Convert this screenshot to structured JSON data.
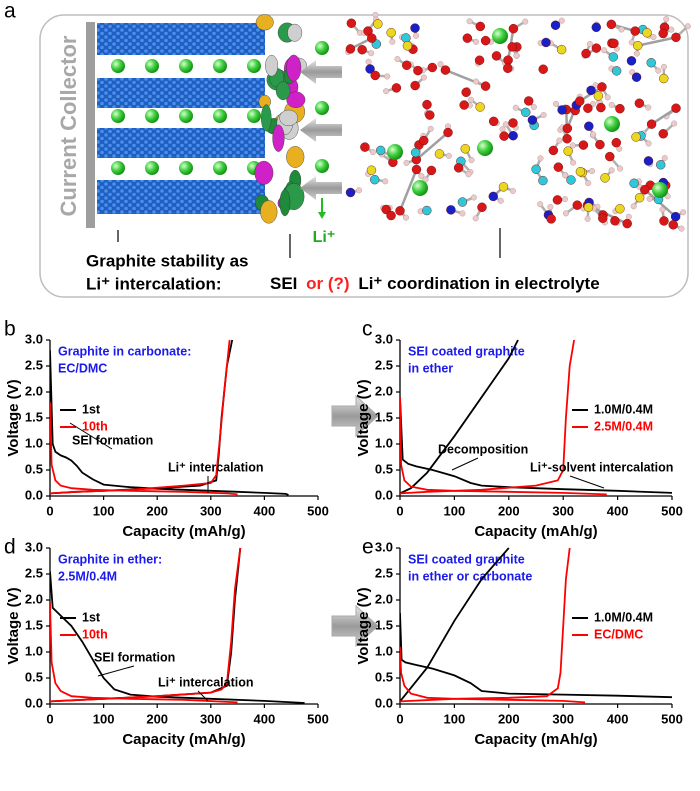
{
  "schematic": {
    "panel_label": "a",
    "collector": "Current Collector",
    "li_ion": "Li⁺",
    "caption_line1": "Graphite stability as",
    "caption_line2": "Li⁺ intercalation:",
    "sei": "SEI",
    "or_q": "or (?)",
    "coordination": "Li⁺ coordination in electrolyte"
  },
  "chart_data": [
    {
      "type": "line",
      "panel_label": "b",
      "xlabel": "Capacity (mAh/g)",
      "ylabel": "Voltage (V)",
      "note": [
        "Graphite in carbonate:",
        "EC/DMC"
      ],
      "legend": "center left",
      "annotations": [
        "SEI formation",
        "Li⁺ intercalation"
      ],
      "xlim": [
        0,
        500
      ],
      "xticks": [
        0,
        100,
        200,
        300,
        400,
        500
      ],
      "ylim": [
        0,
        3
      ],
      "yticks": [
        {
          "value": 0,
          "label": "0.0"
        },
        0.5,
        {
          "value": 1,
          "label": "1.0"
        },
        1.5,
        {
          "value": 2,
          "label": "2.0"
        },
        2.5,
        {
          "value": 3,
          "label": "3.0"
        }
      ],
      "series": [
        {
          "name": "1st",
          "color": "#000000",
          "x": [
            0,
            5,
            10,
            20,
            30,
            40,
            50,
            60,
            80,
            100,
            150,
            200,
            250,
            300,
            350,
            400,
            440,
            445,
            null,
            0,
            50,
            100,
            200,
            280,
            310,
            315,
            320,
            330,
            340
          ],
          "values": [
            2.8,
            1.0,
            0.85,
            0.78,
            0.74,
            0.68,
            0.58,
            0.45,
            0.32,
            0.22,
            0.17,
            0.14,
            0.12,
            0.1,
            0.08,
            0.06,
            0.04,
            0.02,
            null,
            0.05,
            0.08,
            0.1,
            0.15,
            0.2,
            0.3,
            0.8,
            1.5,
            2.5,
            3.0
          ]
        },
        {
          "name": "10th",
          "color": "#ff0000",
          "x": [
            0,
            3,
            10,
            20,
            40,
            80,
            150,
            250,
            330,
            350,
            null,
            0,
            50,
            150,
            250,
            300,
            310,
            318,
            325,
            335
          ],
          "values": [
            1.8,
            0.6,
            0.3,
            0.2,
            0.15,
            0.12,
            0.1,
            0.08,
            0.05,
            0.03,
            null,
            0.05,
            0.08,
            0.12,
            0.2,
            0.25,
            0.4,
            1.2,
            2.0,
            3.0
          ]
        }
      ]
    },
    {
      "type": "line",
      "panel_label": "c",
      "xlabel": "Capacity (mAh/g)",
      "ylabel": "Voltage (V)",
      "note": [
        "SEI coated graphite",
        "in ether"
      ],
      "legend": "center right",
      "annotations": [
        "Decomposition",
        "Li⁺-solvent intercalation"
      ],
      "xlim": [
        0,
        500
      ],
      "xticks": [
        0,
        100,
        200,
        300,
        400,
        500
      ],
      "ylim": [
        0,
        3
      ],
      "yticks": [
        {
          "value": 0,
          "label": "0.0"
        },
        0.5,
        {
          "value": 1,
          "label": "1.0"
        },
        1.5,
        {
          "value": 2,
          "label": "2.0"
        },
        2.5,
        {
          "value": 3,
          "label": "3.0"
        }
      ],
      "series": [
        {
          "name": "1.0M/0.4M",
          "color": "#000000",
          "x": [
            0,
            5,
            15,
            30,
            60,
            100,
            130,
            150,
            200,
            300,
            400,
            500,
            null,
            0,
            20,
            50,
            100,
            150,
            200,
            217
          ],
          "values": [
            1.9,
            0.7,
            0.62,
            0.57,
            0.5,
            0.38,
            0.25,
            0.2,
            0.17,
            0.13,
            0.1,
            0.06,
            null,
            0.05,
            0.15,
            0.45,
            1.15,
            1.9,
            2.65,
            3.0
          ]
        },
        {
          "name": "2.5M/0.4M",
          "color": "#ff0000",
          "x": [
            0,
            2,
            8,
            20,
            50,
            100,
            200,
            300,
            380,
            null,
            0,
            50,
            150,
            250,
            290,
            300,
            305,
            312,
            320
          ],
          "values": [
            1.9,
            0.6,
            0.3,
            0.18,
            0.12,
            0.1,
            0.08,
            0.06,
            0.03,
            null,
            0.05,
            0.08,
            0.12,
            0.2,
            0.3,
            0.5,
            1.5,
            2.5,
            3.0
          ]
        }
      ]
    },
    {
      "type": "line",
      "panel_label": "d",
      "xlabel": "Capacity (mAh/g)",
      "ylabel": "Voltage (V)",
      "note": [
        "Graphite in ether:",
        "2.5M/0.4M"
      ],
      "legend": "center left",
      "annotations": [
        "SEI formation",
        "Li⁺ intercalation"
      ],
      "xlim": [
        0,
        500
      ],
      "xticks": [
        0,
        100,
        200,
        300,
        400,
        500
      ],
      "ylim": [
        0,
        3
      ],
      "yticks": [
        {
          "value": 0,
          "label": "0.0"
        },
        0.5,
        {
          "value": 1,
          "label": "1.0"
        },
        1.5,
        {
          "value": 2,
          "label": "2.0"
        },
        2.5,
        {
          "value": 3,
          "label": "3.0"
        }
      ],
      "series": [
        {
          "name": "1st",
          "color": "#000000",
          "x": [
            0,
            5,
            20,
            40,
            60,
            80,
            100,
            120,
            150,
            200,
            300,
            400,
            475,
            null,
            0,
            100,
            200,
            300,
            330,
            338,
            345,
            355
          ],
          "values": [
            2.55,
            1.85,
            1.7,
            1.5,
            1.2,
            0.85,
            0.5,
            0.28,
            0.18,
            0.14,
            0.1,
            0.06,
            0.02,
            null,
            0.05,
            0.1,
            0.15,
            0.22,
            0.35,
            1.0,
            2.0,
            3.0
          ]
        },
        {
          "name": "10th",
          "color": "#ff0000",
          "x": [
            0,
            3,
            10,
            20,
            40,
            80,
            150,
            250,
            350,
            null,
            0,
            100,
            200,
            300,
            320,
            330,
            338,
            345,
            355
          ],
          "values": [
            1.95,
            0.8,
            0.4,
            0.25,
            0.15,
            0.12,
            0.1,
            0.08,
            0.03,
            null,
            0.05,
            0.1,
            0.15,
            0.22,
            0.28,
            0.4,
            1.2,
            2.2,
            3.0
          ]
        }
      ]
    },
    {
      "type": "line",
      "panel_label": "e",
      "xlabel": "Capacity (mAh/g)",
      "ylabel": "Voltage (V)",
      "note": [
        "SEI coated graphite",
        "in ether or carbonate"
      ],
      "legend": "center right",
      "xlim": [
        0,
        500
      ],
      "xticks": [
        0,
        100,
        200,
        300,
        400,
        500
      ],
      "ylim": [
        0,
        3
      ],
      "yticks": [
        {
          "value": 0,
          "label": "0.0"
        },
        0.5,
        {
          "value": 1,
          "label": "1.0"
        },
        1.5,
        {
          "value": 2,
          "label": "2.0"
        },
        2.5,
        {
          "value": 3,
          "label": "3.0"
        }
      ],
      "series": [
        {
          "name": "1.0M/0.4M",
          "color": "#000000",
          "x": [
            0,
            3,
            10,
            30,
            60,
            100,
            130,
            150,
            200,
            300,
            400,
            500,
            null,
            0,
            50,
            100,
            150,
            200
          ],
          "values": [
            1.75,
            0.85,
            0.8,
            0.75,
            0.68,
            0.55,
            0.4,
            0.25,
            0.2,
            0.18,
            0.16,
            0.13,
            null,
            0.05,
            0.7,
            1.6,
            2.4,
            3.0
          ]
        },
        {
          "name": "EC/DMC",
          "color": "#ff0000",
          "x": [
            0,
            2,
            8,
            20,
            50,
            100,
            200,
            300,
            340,
            null,
            0,
            100,
            200,
            270,
            290,
            295,
            300,
            305,
            312
          ],
          "values": [
            1.1,
            0.6,
            0.35,
            0.2,
            0.12,
            0.1,
            0.08,
            0.06,
            0.03,
            null,
            0.05,
            0.1,
            0.12,
            0.15,
            0.3,
            0.6,
            1.5,
            2.4,
            3.0
          ]
        }
      ]
    }
  ]
}
